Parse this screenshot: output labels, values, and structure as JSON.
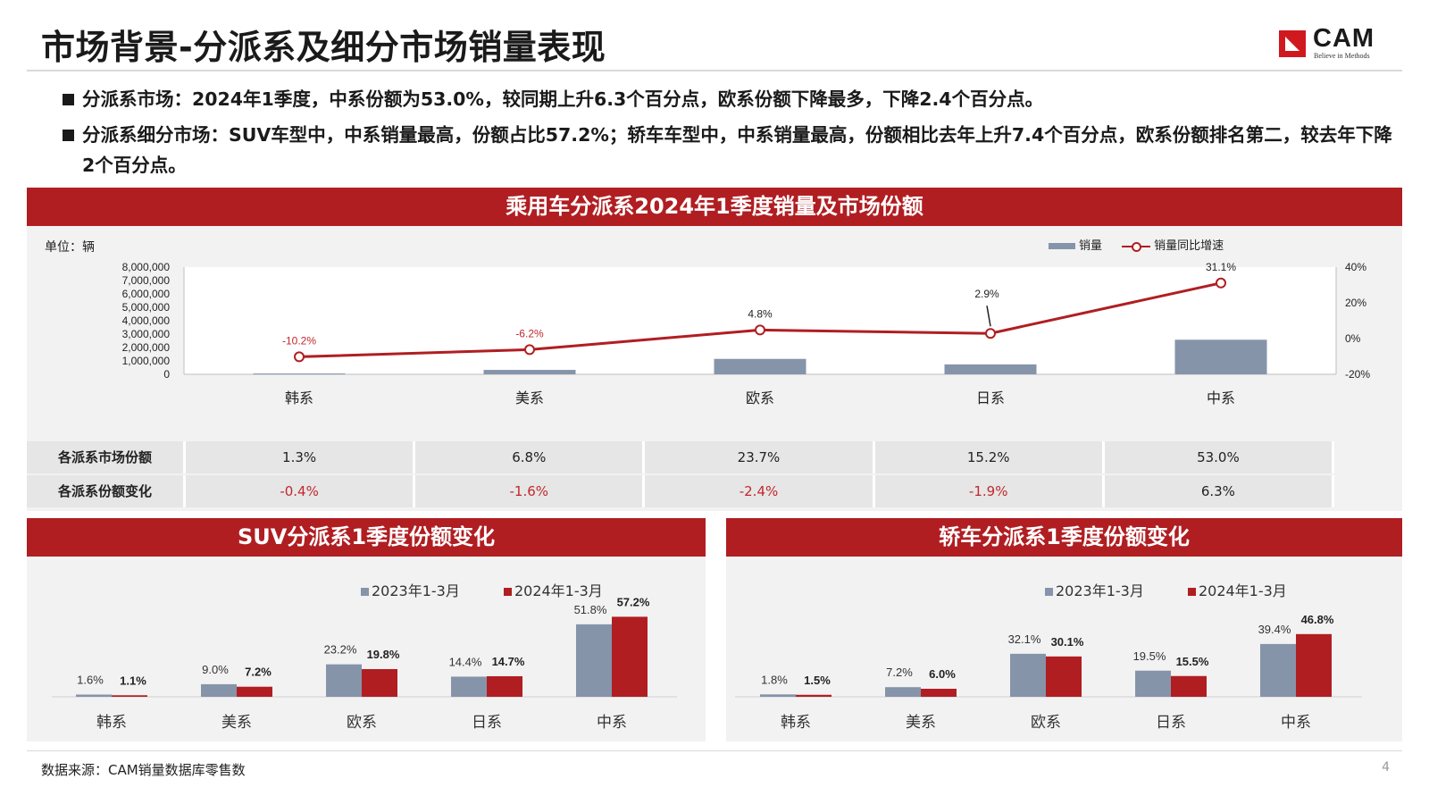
{
  "title": "市场背景-分派系及细分市场销量表现",
  "logo": {
    "text": "CAM",
    "tagline": "Believe in Methods"
  },
  "bullets": [
    "分派系市场：2024年1季度，中系份额为53.0%，较同期上升6.3个百分点，欧系份额下降最多，下降2.4个百分点。",
    "分派系细分市场：SUV车型中，中系销量最高，份额占比57.2%；轿车车型中，中系销量最高，份额相比去年上升7.4个百分点，欧系份额排名第二，较去年下降2个百分点。"
  ],
  "main_panel": {
    "header": "乘用车分派系2024年1季度销量及市场份额",
    "unit": "单位：辆",
    "legend": {
      "bar": "销量",
      "line": "销量同比增速"
    },
    "share_table": {
      "row_headers": [
        "各派系市场份额",
        "各派系份额变化"
      ],
      "shares": [
        "1.3%",
        "6.8%",
        "23.7%",
        "15.2%",
        "53.0%"
      ],
      "changes": [
        "-0.4%",
        "-1.6%",
        "-2.4%",
        "-1.9%",
        "6.3%"
      ]
    }
  },
  "suv_panel": {
    "header": "SUV分派系1季度份额变化"
  },
  "sedan_panel": {
    "header": "轿车分派系1季度份额变化"
  },
  "colors": {
    "accent": "#b01e22",
    "bar_gray": "#8694aa",
    "negative": "#c0282d"
  },
  "chart_data": [
    {
      "type": "bar",
      "title": "乘用车分派系2024年1季度销量及市场份额",
      "categories": [
        "韩系",
        "美系",
        "欧系",
        "日系",
        "中系"
      ],
      "series": [
        {
          "name": "销量",
          "type": "bar",
          "axis": "left",
          "values": [
            60000,
            330000,
            1150000,
            740000,
            2580000
          ]
        },
        {
          "name": "销量同比增速",
          "type": "line",
          "axis": "right",
          "values": [
            -10.2,
            -6.2,
            4.8,
            2.9,
            31.1
          ],
          "labels": [
            "-10.2%",
            "-6.2%",
            "4.8%",
            "2.9%",
            "31.1%"
          ]
        }
      ],
      "ylim": [
        0,
        8000000
      ],
      "yticks": [
        "8,000,000",
        "7,000,000",
        "6,000,000",
        "5,000,000",
        "4,000,000",
        "3,000,000",
        "2,000,000",
        "1,000,000",
        "0"
      ],
      "y2lim": [
        -20,
        40
      ],
      "y2ticks": [
        "40%",
        "20%",
        "0%",
        "-20%"
      ],
      "legend_position": "top-right"
    },
    {
      "type": "bar",
      "title": "SUV分派系1季度份额变化",
      "categories": [
        "韩系",
        "美系",
        "欧系",
        "日系",
        "中系"
      ],
      "series": [
        {
          "name": "2023年1-3月",
          "values": [
            1.6,
            9.0,
            23.2,
            14.4,
            51.8
          ],
          "labels": [
            "1.6%",
            "9.0%",
            "23.2%",
            "14.4%",
            "51.8%"
          ]
        },
        {
          "name": "2024年1-3月",
          "values": [
            1.1,
            7.2,
            19.8,
            14.7,
            57.2
          ],
          "labels": [
            "1.1%",
            "7.2%",
            "19.8%",
            "14.7%",
            "57.2%"
          ]
        }
      ],
      "ylim": [
        0,
        60
      ],
      "legend_position": "top"
    },
    {
      "type": "bar",
      "title": "轿车分派系1季度份额变化",
      "categories": [
        "韩系",
        "美系",
        "欧系",
        "日系",
        "中系"
      ],
      "series": [
        {
          "name": "2023年1-3月",
          "values": [
            1.8,
            7.2,
            32.1,
            19.5,
            39.4
          ],
          "labels": [
            "1.8%",
            "7.2%",
            "32.1%",
            "19.5%",
            "39.4%"
          ]
        },
        {
          "name": "2024年1-3月",
          "values": [
            1.5,
            6.0,
            30.1,
            15.5,
            46.8
          ],
          "labels": [
            "1.5%",
            "6.0%",
            "30.1%",
            "15.5%",
            "46.8%"
          ]
        }
      ],
      "ylim": [
        0,
        50
      ],
      "legend_position": "top"
    }
  ],
  "footer": {
    "source": "数据来源：CAM销量数据库零售数",
    "page": "4"
  }
}
